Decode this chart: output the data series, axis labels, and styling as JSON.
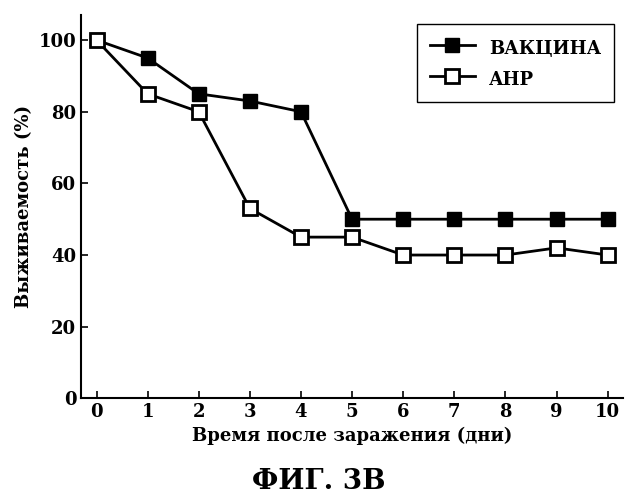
{
  "vaccine_x": [
    0,
    1,
    2,
    3,
    4,
    5,
    6,
    7,
    8,
    9,
    10
  ],
  "vaccine_y": [
    100,
    95,
    85,
    83,
    80,
    50,
    50,
    50,
    50,
    50,
    50
  ],
  "anp_x": [
    0,
    1,
    2,
    3,
    4,
    5,
    6,
    7,
    8,
    9,
    10
  ],
  "anp_y": [
    100,
    85,
    80,
    53,
    45,
    45,
    40,
    40,
    40,
    42,
    40
  ],
  "xlabel": "Время после заражения (дни)",
  "ylabel": "Выживаемость (%)",
  "title": "ФИГ. 3В",
  "vaccine_label": "ВАКЦИНА",
  "anp_label": "АНР",
  "xlim": [
    -0.3,
    10.3
  ],
  "ylim": [
    0,
    107
  ],
  "xticks": [
    0,
    1,
    2,
    3,
    4,
    5,
    6,
    7,
    8,
    9,
    10
  ],
  "yticks": [
    0,
    20,
    40,
    60,
    80,
    100
  ],
  "background_color": "#ffffff",
  "line_color": "#000000",
  "marker_size": 10,
  "linewidth": 2.0,
  "tick_fontsize": 13,
  "label_fontsize": 13,
  "title_fontsize": 20,
  "legend_fontsize": 13
}
